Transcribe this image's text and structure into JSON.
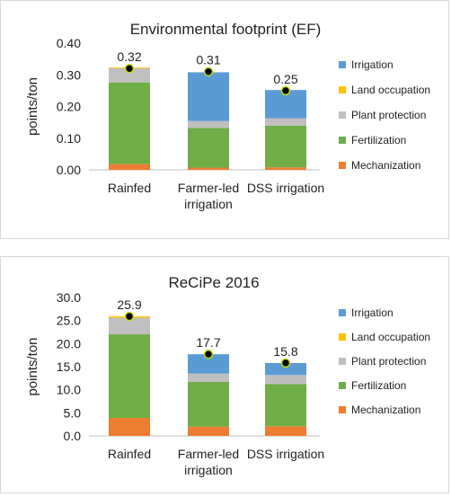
{
  "chart_data": [
    {
      "type": "bar",
      "stacked": true,
      "title": "Environmental footprint (EF)",
      "ylabel": "points/ton",
      "xlabel": "",
      "ylim": [
        0,
        0.4
      ],
      "yticks": [
        "0.00",
        "0.10",
        "0.20",
        "0.30",
        "0.40"
      ],
      "grid": false,
      "legend_position": "right",
      "categories": [
        [
          "Rainfed"
        ],
        [
          "Farmer-led",
          "irrigation"
        ],
        [
          "DSS irrigation"
        ]
      ],
      "series": [
        {
          "name": "Mechanization",
          "values": [
            0.018,
            0.007,
            0.008
          ]
        },
        {
          "name": "Fertilization",
          "values": [
            0.258,
            0.125,
            0.131
          ]
        },
        {
          "name": "Plant protection",
          "values": [
            0.045,
            0.022,
            0.024
          ]
        },
        {
          "name": "Land occupation",
          "values": [
            0.002,
            0.0,
            0.0
          ]
        },
        {
          "name": "Irrigation",
          "values": [
            0.0,
            0.154,
            0.089
          ]
        }
      ],
      "totals": [
        0.32,
        0.31,
        0.25
      ],
      "total_labels": [
        "0.32",
        "0.31",
        "0.25"
      ]
    },
    {
      "type": "bar",
      "stacked": true,
      "title": "ReCiPe 2016",
      "ylabel": "points/ton",
      "xlabel": "",
      "ylim": [
        0,
        30
      ],
      "yticks": [
        "0.0",
        "5.0",
        "10.0",
        "15.0",
        "20.0",
        "25.0",
        "30.0"
      ],
      "grid": false,
      "legend_position": "right",
      "categories": [
        [
          "Rainfed"
        ],
        [
          "Farmer-led",
          "irrigation"
        ],
        [
          "DSS irrigation"
        ]
      ],
      "series": [
        {
          "name": "Mechanization",
          "values": [
            3.9,
            2.0,
            2.1
          ]
        },
        {
          "name": "Fertilization",
          "values": [
            18.1,
            9.7,
            9.1
          ]
        },
        {
          "name": "Plant protection",
          "values": [
            3.6,
            1.8,
            2.0
          ]
        },
        {
          "name": "Land occupation",
          "values": [
            0.3,
            0.0,
            0.0
          ]
        },
        {
          "name": "Irrigation",
          "values": [
            0.0,
            4.2,
            2.6
          ]
        }
      ],
      "totals": [
        25.9,
        17.7,
        15.8
      ],
      "total_labels": [
        "25.9",
        "17.7",
        "15.8"
      ]
    }
  ],
  "colors": {
    "Mechanization": "#ed7d31",
    "Fertilization": "#70ad47",
    "Plant protection": "#bfbfbf",
    "Land occupation": "#ffc000",
    "Irrigation": "#5b9bd5",
    "total_marker_fill": "#000000",
    "total_marker_stroke": "#c6e000"
  },
  "legend_order": [
    "Irrigation",
    "Land occupation",
    "Plant protection",
    "Fertilization",
    "Mechanization"
  ]
}
